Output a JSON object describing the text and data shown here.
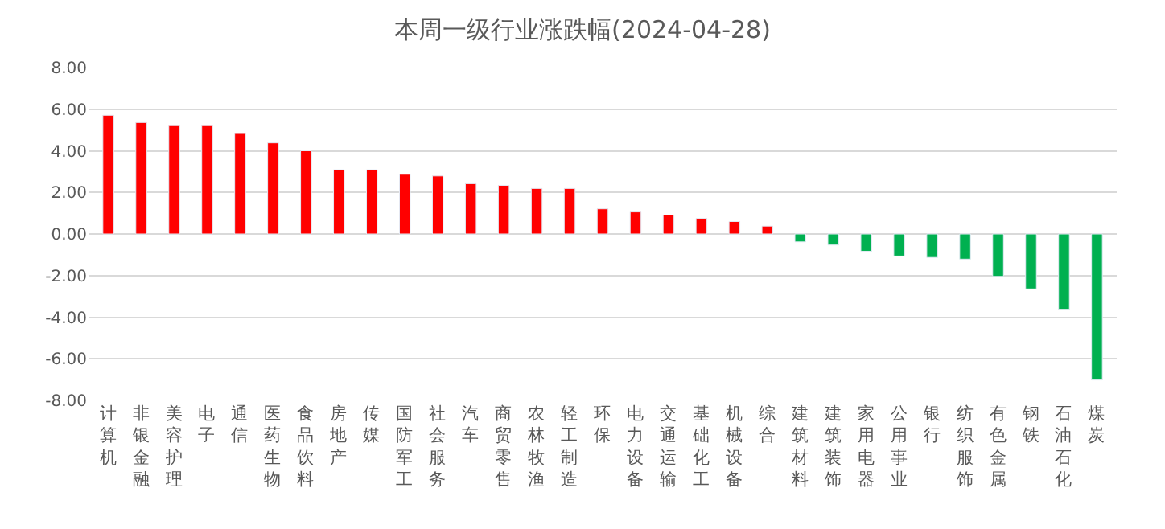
{
  "chart_data": {
    "type": "bar",
    "title": "本周一级行业涨跌幅(2024-04-28)",
    "categories": [
      "计算机",
      "非银金融",
      "美容护理",
      "电子",
      "通信",
      "医药生物",
      "食品饮料",
      "房地产",
      "传媒",
      "国防军工",
      "社会服务",
      "汽车",
      "商贸零售",
      "农林牧渔",
      "轻工制造",
      "环保",
      "电力设备",
      "交通运输",
      "基础化工",
      "机械设备",
      "综合",
      "建筑材料",
      "建筑装饰",
      "家用电器",
      "公用事业",
      "银行",
      "纺织服饰",
      "有色金属",
      "钢铁",
      "石油石化",
      "煤炭"
    ],
    "values": [
      5.71,
      5.36,
      5.21,
      5.21,
      4.83,
      4.38,
      4.0,
      3.09,
      3.09,
      2.87,
      2.79,
      2.42,
      2.34,
      2.19,
      2.19,
      1.21,
      1.06,
      0.91,
      0.75,
      0.6,
      0.38,
      -0.38,
      -0.53,
      -0.83,
      -1.06,
      -1.13,
      -1.21,
      -2.04,
      -2.64,
      -3.62,
      -7.02
    ],
    "colors": [
      "#ff0000",
      "#ff0000",
      "#ff0000",
      "#ff0000",
      "#ff0000",
      "#ff0000",
      "#ff0000",
      "#ff0000",
      "#ff0000",
      "#ff0000",
      "#ff0000",
      "#ff0000",
      "#ff0000",
      "#ff0000",
      "#ff0000",
      "#ff0000",
      "#ff0000",
      "#ff0000",
      "#ff0000",
      "#ff0000",
      "#ff0000",
      "#00b050",
      "#00b050",
      "#00b050",
      "#00b050",
      "#00b050",
      "#00b050",
      "#00b050",
      "#00b050",
      "#00b050",
      "#00b050"
    ],
    "ylim": [
      -8,
      8
    ],
    "yticks": [
      {
        "value": -8,
        "label": "-8.00"
      },
      {
        "value": -6,
        "label": "-6.00"
      },
      {
        "value": -4,
        "label": "-4.00"
      },
      {
        "value": -2,
        "label": "-2.00"
      },
      {
        "value": 0,
        "label": "0.00"
      },
      {
        "value": 2,
        "label": "2.00"
      },
      {
        "value": 4,
        "label": "4.00"
      },
      {
        "value": 6,
        "label": "6.00"
      },
      {
        "value": 8,
        "label": "8.00"
      }
    ],
    "grid": "y",
    "legend": false
  }
}
